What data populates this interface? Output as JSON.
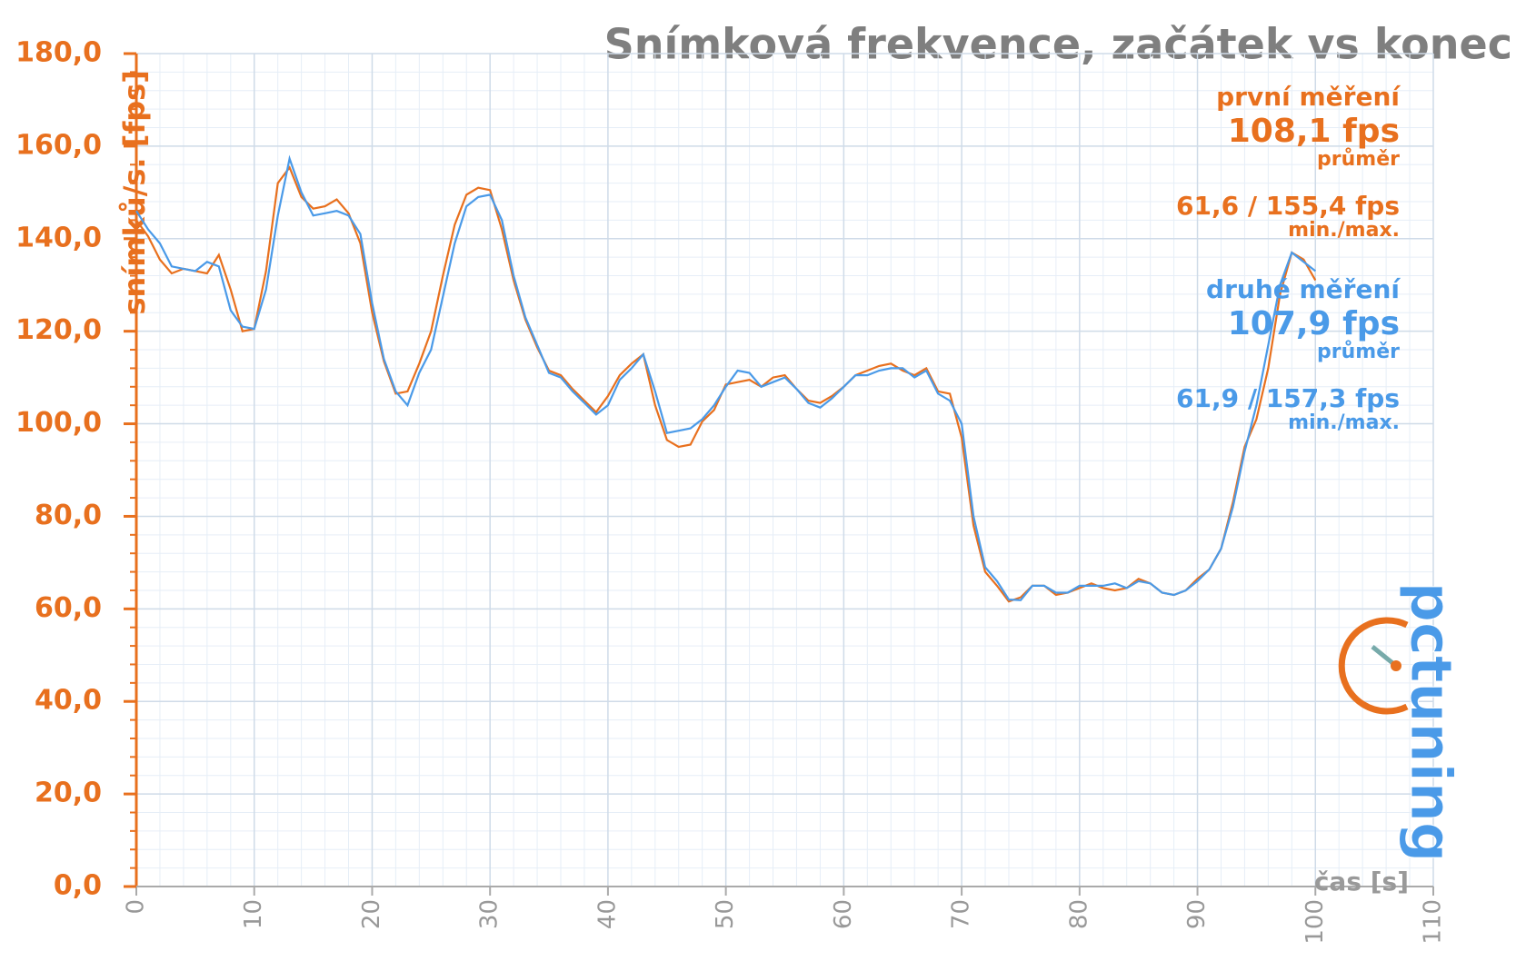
{
  "chart_data": {
    "type": "line",
    "title": "Snímková frekvence, začátek vs konec",
    "y_label": "snímků/s. [fps]",
    "x_label": "čas [s]",
    "xlim": [
      0,
      110
    ],
    "xticks": [
      0,
      10,
      20,
      30,
      40,
      50,
      60,
      70,
      80,
      90,
      100,
      110
    ],
    "ylim": [
      0,
      180
    ],
    "yticks": [
      {
        "value": 0,
        "label": "0,0"
      },
      {
        "value": 20,
        "label": "20,0"
      },
      {
        "value": 40,
        "label": "40,0"
      },
      {
        "value": 60,
        "label": "60,0"
      },
      {
        "value": 80,
        "label": "80,0"
      },
      {
        "value": 100,
        "label": "100,0"
      },
      {
        "value": 120,
        "label": "120,0"
      },
      {
        "value": 140,
        "label": "140,0"
      },
      {
        "value": 160,
        "label": "160,0"
      },
      {
        "value": 180,
        "label": "180,0"
      }
    ],
    "grid": true,
    "minor_grid": 5,
    "x": [
      0,
      1,
      2,
      3,
      4,
      5,
      6,
      7,
      8,
      9,
      10,
      11,
      12,
      13,
      14,
      15,
      16,
      17,
      18,
      19,
      20,
      21,
      22,
      23,
      24,
      25,
      26,
      27,
      28,
      29,
      30,
      31,
      32,
      33,
      34,
      35,
      36,
      37,
      38,
      39,
      40,
      41,
      42,
      43,
      44,
      45,
      46,
      47,
      48,
      49,
      50,
      51,
      52,
      53,
      54,
      55,
      56,
      57,
      58,
      59,
      60,
      61,
      62,
      63,
      64,
      65,
      66,
      67,
      68,
      69,
      70,
      71,
      72,
      73,
      74,
      75,
      76,
      77,
      78,
      79,
      80,
      81,
      82,
      83,
      84,
      85,
      86,
      87,
      88,
      89,
      90,
      91,
      92,
      93,
      94,
      95,
      96,
      97,
      98,
      99,
      100
    ],
    "series": [
      {
        "name": "první měření",
        "color": "#e8701e",
        "values": [
          144,
          140.5,
          135.5,
          132.5,
          133.5,
          133,
          132.5,
          136.5,
          129,
          120,
          120.5,
          133,
          152,
          155.4,
          149,
          146.5,
          147,
          148.5,
          145.5,
          139,
          124,
          113.5,
          106.5,
          107,
          113,
          120,
          132,
          143,
          149.5,
          151,
          150.5,
          142,
          131,
          122.5,
          116.5,
          111.5,
          110.5,
          107.5,
          105,
          102.5,
          106,
          110.5,
          113,
          115,
          104,
          96.5,
          95,
          95.5,
          100.5,
          103,
          108.5,
          109,
          109.5,
          108,
          110,
          110.5,
          107.5,
          105,
          104.5,
          106,
          108,
          110.5,
          111.5,
          112.5,
          113,
          111.5,
          110.5,
          112,
          107,
          106.5,
          97,
          78,
          68,
          65,
          61.6,
          62.5,
          65,
          65,
          63,
          63.5,
          64.5,
          65.5,
          64.5,
          64,
          64.5,
          66.5,
          65.5,
          63.5,
          63,
          64,
          66.5,
          68.5,
          73,
          83,
          95,
          101,
          112,
          128,
          137,
          135.5,
          131
        ]
      },
      {
        "name": "druhé měření",
        "color": "#4a9ae8",
        "values": [
          146,
          142,
          139,
          134,
          133.5,
          133,
          135,
          134,
          124.5,
          121,
          120.5,
          129,
          145,
          157.3,
          150,
          145,
          145.5,
          146,
          145,
          141,
          126,
          114,
          107,
          104,
          111,
          116,
          127.5,
          139,
          147,
          149,
          149.5,
          144,
          132,
          123,
          117,
          111,
          110,
          107,
          104.5,
          102,
          104,
          109.5,
          112,
          115,
          107,
          98,
          98.5,
          99,
          101,
          104,
          108,
          111.5,
          111,
          108,
          109,
          110,
          107.5,
          104.5,
          103.5,
          105.5,
          108,
          110.5,
          110.5,
          111.5,
          112,
          112,
          110,
          111.5,
          106.5,
          105,
          100,
          80,
          69,
          66,
          62,
          61.9,
          65,
          65,
          63.5,
          63.5,
          65,
          65,
          65,
          65.5,
          64.5,
          66,
          65.5,
          63.5,
          63,
          64,
          66,
          68.5,
          73,
          82,
          94,
          104,
          117,
          130,
          137,
          135,
          133
        ]
      }
    ],
    "stats": [
      {
        "name": "první měření",
        "avg": "108,1 fps",
        "avg_label": "průměr",
        "minmax": "61,6 / 155,4 fps",
        "minmax_label": "min./max."
      },
      {
        "name": "druhé měření",
        "avg": "107,9 fps",
        "avg_label": "průměr",
        "minmax": "61,9 / 157,3 fps",
        "minmax_label": "min./max."
      }
    ],
    "logo": "pctuning"
  }
}
